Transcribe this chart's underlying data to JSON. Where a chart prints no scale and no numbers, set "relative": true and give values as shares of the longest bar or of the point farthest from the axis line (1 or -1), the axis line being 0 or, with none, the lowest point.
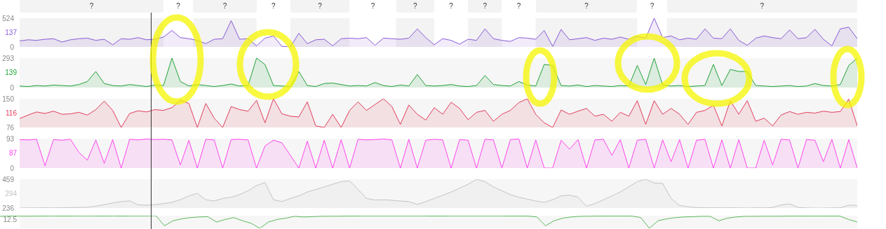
{
  "chart_data": [
    {
      "type": "area",
      "categories": [
        null,
        null,
        null,
        null,
        null,
        null,
        null,
        null,
        null,
        null,
        null,
        null,
        null,
        null,
        null,
        null,
        null,
        null,
        null,
        null,
        null,
        null,
        null,
        null,
        null,
        null,
        null,
        null,
        null,
        null,
        null,
        null,
        null,
        null,
        null,
        null,
        null,
        null,
        null,
        null,
        null,
        null,
        null,
        null,
        null,
        null,
        null,
        null,
        null,
        null,
        null,
        null,
        null,
        null,
        null,
        null,
        null,
        null,
        null,
        null,
        null,
        null,
        null,
        null,
        null,
        null,
        null,
        null,
        null,
        null,
        null,
        null,
        null,
        null,
        null,
        null,
        null,
        null,
        null,
        null,
        null,
        null,
        null,
        null,
        null,
        null,
        null,
        null,
        null,
        null,
        null,
        null,
        null,
        null,
        null,
        null,
        null,
        null,
        null,
        null
      ],
      "ylim": [
        0,
        524
      ],
      "yticks": [
        0,
        524
      ],
      "tick_labels": "y",
      "annotations": [
        "137",
        "?",
        "?",
        "?",
        "?",
        "?",
        "?",
        "?",
        "?",
        "?",
        "?",
        "?",
        "?",
        "?"
      ],
      "series": [
        {
          "color": "#8a5bd6",
          "values": [
            110,
            130,
            120,
            140,
            150,
            90,
            130,
            150,
            160,
            120,
            140,
            40,
            150,
            140,
            170,
            130,
            140,
            180,
            300,
            170,
            150,
            120,
            60,
            140,
            150,
            480,
            140,
            150,
            20,
            160,
            200,
            10,
            0,
            250,
            60,
            130,
            140,
            20,
            150,
            160,
            150,
            170,
            30,
            160,
            150,
            140,
            160,
            330,
            170,
            40,
            150,
            120,
            50,
            140,
            120,
            330,
            150,
            120,
            100,
            170,
            160,
            140,
            300,
            10,
            320,
            130,
            150,
            170,
            120,
            160,
            140,
            180,
            140,
            190,
            160,
            524,
            170,
            200,
            130,
            160,
            140,
            330,
            160,
            150,
            330,
            120,
            30,
            160,
            200,
            170,
            150,
            310,
            150,
            170,
            320,
            140,
            20,
            330,
            360,
            150
          ]
        }
      ]
    },
    {
      "type": "area",
      "categories": [
        null,
        null,
        null,
        null,
        null,
        null,
        null,
        null,
        null,
        null,
        null,
        null,
        null,
        null,
        null,
        null,
        null,
        null,
        null,
        null,
        null,
        null,
        null,
        null,
        null,
        null,
        null,
        null,
        null,
        null,
        null,
        null,
        null,
        null,
        null,
        null,
        null,
        null,
        null,
        null,
        null,
        null,
        null,
        null,
        null,
        null,
        null,
        null,
        null,
        null,
        null,
        null,
        null,
        null,
        null,
        null,
        null,
        null,
        null,
        null,
        null,
        null,
        null,
        null,
        null,
        null,
        null,
        null,
        null,
        null,
        null,
        null,
        null,
        null,
        null,
        null,
        null,
        null,
        null,
        null,
        null,
        null,
        null,
        null,
        null,
        null,
        null,
        null,
        null,
        null,
        null,
        null,
        null,
        null,
        null,
        null,
        null,
        null,
        null,
        null
      ],
      "ylim": [
        0,
        293
      ],
      "yticks": [
        0,
        293
      ],
      "tick_labels": "y",
      "annotations": [
        "139"
      ],
      "series": [
        {
          "color": "#22a33a",
          "values": [
            15,
            10,
            20,
            15,
            25,
            20,
            15,
            30,
            60,
            160,
            40,
            20,
            15,
            30,
            20,
            10,
            25,
            20,
            293,
            60,
            15,
            30,
            20,
            10,
            20,
            35,
            15,
            20,
            293,
            230,
            20,
            15,
            10,
            160,
            20,
            10,
            40,
            45,
            30,
            15,
            20,
            15,
            50,
            20,
            10,
            25,
            15,
            130,
            20,
            15,
            20,
            30,
            15,
            10,
            20,
            120,
            30,
            20,
            15,
            60,
            25,
            15,
            230,
            220,
            20,
            15,
            25,
            10,
            20,
            15,
            10,
            20,
            15,
            220,
            30,
            293,
            25,
            15,
            20,
            10,
            15,
            20,
            230,
            20,
            180,
            160,
            160,
            20,
            15,
            10,
            15,
            20,
            10,
            15,
            40,
            20,
            15,
            30,
            220,
            293
          ]
        }
      ]
    },
    {
      "type": "area",
      "categories": [
        null,
        null,
        null,
        null,
        null,
        null,
        null,
        null,
        null,
        null,
        null,
        null,
        null,
        null,
        null,
        null,
        null,
        null,
        null,
        null,
        null,
        null,
        null,
        null,
        null,
        null,
        null,
        null,
        null,
        null,
        null,
        null,
        null,
        null,
        null,
        null,
        null,
        null,
        null,
        null,
        null,
        null,
        null,
        null,
        null,
        null,
        null,
        null,
        null,
        null,
        null,
        null,
        null,
        null,
        null,
        null,
        null,
        null,
        null,
        null,
        null,
        null,
        null,
        null,
        null,
        null,
        null,
        null,
        null,
        null,
        null,
        null,
        null,
        null,
        null,
        null,
        null,
        null,
        null,
        null,
        null,
        null,
        null,
        null,
        null,
        null,
        null,
        null,
        null,
        null,
        null,
        null,
        null,
        null,
        null,
        null,
        null,
        null,
        null,
        null
      ],
      "ylim": [
        76,
        150
      ],
      "yticks": [
        76,
        150
      ],
      "tick_labels": "y",
      "annotations": [
        "116"
      ],
      "series": [
        {
          "color": "#e23e5c",
          "values": [
            99,
            108,
            116,
            112,
            118,
            110,
            111,
            115,
            108,
            122,
            144,
            120,
            76,
            112,
            119,
            116,
            122,
            120,
            127,
            146,
            138,
            76,
            138,
            100,
            76,
            130,
            122,
            118,
            146,
            88,
            150,
            111,
            105,
            103,
            142,
            80,
            76,
            110,
            76,
            120,
            142,
            120,
            135,
            150,
            130,
            84,
            134,
            110,
            95,
            127,
            110,
            141,
            125,
            96,
            115,
            120,
            92,
            110,
            120,
            140,
            150,
            110,
            88,
            76,
            121,
            110,
            118,
            125,
            105,
            110,
            92,
            115,
            105,
            145,
            84,
            145,
            110,
            125,
            110,
            84,
            115,
            120,
            133,
            80,
            145,
            110,
            145,
            92,
            100,
            80,
            108,
            117,
            110,
            115,
            113,
            118,
            115,
            117,
            149,
            80
          ]
        }
      ]
    },
    {
      "type": "area",
      "categories": [
        null,
        null,
        null,
        null,
        null,
        null,
        null,
        null,
        null,
        null,
        null,
        null,
        null,
        null,
        null,
        null,
        null,
        null,
        null,
        null,
        null,
        null,
        null,
        null,
        null,
        null,
        null,
        null,
        null,
        null,
        null,
        null,
        null,
        null,
        null,
        null,
        null,
        null,
        null,
        null,
        null,
        null,
        null,
        null,
        null,
        null,
        null,
        null,
        null,
        null,
        null,
        null,
        null,
        null,
        null,
        null,
        null,
        null,
        null,
        null,
        null,
        null,
        null,
        null,
        null,
        null,
        null,
        null,
        null,
        null,
        null,
        null,
        null,
        null,
        null,
        null,
        null,
        null,
        null,
        null,
        null,
        null,
        null,
        null,
        null,
        null,
        null,
        null,
        null,
        null,
        null,
        null,
        null,
        null,
        null,
        null,
        null,
        null,
        null,
        null
      ],
      "ylim": [
        0,
        93
      ],
      "yticks": [
        0,
        93
      ],
      "tick_labels": "y",
      "annotations": [
        "87"
      ],
      "series": [
        {
          "color": "#ff44ee",
          "values": [
            90,
            89,
            91,
            7,
            90,
            88,
            91,
            50,
            25,
            89,
            15,
            90,
            0,
            91,
            89,
            92,
            90,
            91,
            89,
            10,
            88,
            0,
            91,
            89,
            0,
            90,
            91,
            89,
            0,
            70,
            88,
            80,
            40,
            0,
            85,
            0,
            88,
            0,
            90,
            0,
            91,
            89,
            90,
            92,
            89,
            0,
            91,
            0,
            88,
            91,
            89,
            0,
            90,
            88,
            0,
            91,
            89,
            0,
            90,
            92,
            0,
            89,
            0,
            0,
            88,
            60,
            90,
            0,
            89,
            91,
            40,
            90,
            0,
            88,
            91,
            0,
            89,
            20,
            90,
            0,
            88,
            91,
            0,
            89,
            0,
            90,
            0,
            0,
            88,
            10,
            91,
            89,
            0,
            90,
            88,
            20,
            91,
            0,
            90,
            0
          ]
        }
      ]
    },
    {
      "type": "area",
      "categories": [
        null,
        null,
        null,
        null,
        null,
        null,
        null,
        null,
        null,
        null,
        null,
        null,
        null,
        null,
        null,
        null,
        null,
        null,
        null,
        null,
        null,
        null,
        null,
        null,
        null,
        null,
        null,
        null,
        null,
        null,
        null,
        null,
        null,
        null,
        null,
        null,
        null,
        null,
        null,
        null,
        null,
        null,
        null,
        null,
        null,
        null,
        null,
        null,
        null,
        null,
        null,
        null,
        null,
        null,
        null,
        null,
        null,
        null,
        null,
        null,
        null,
        null,
        null,
        null,
        null,
        null,
        null,
        null,
        null,
        null,
        null,
        null,
        null,
        null,
        null,
        null,
        null,
        null,
        null,
        null,
        null,
        null,
        null,
        null,
        null,
        null,
        null,
        null,
        null,
        null,
        null,
        null,
        null,
        null,
        null,
        null,
        null,
        null,
        null,
        null
      ],
      "ylim": [
        236,
        459
      ],
      "yticks": [
        236,
        459
      ],
      "tick_labels": "y",
      "annotations": [
        "294"
      ],
      "series": [
        {
          "color": "#c4c4c4",
          "values": [
            236,
            237,
            237,
            238,
            237,
            238,
            240,
            240,
            242,
            250,
            262,
            275,
            286,
            292,
            260,
            258,
            262,
            270,
            280,
            300,
            330,
            350,
            300,
            290,
            310,
            320,
            340,
            370,
            410,
            434,
            300,
            286,
            310,
            330,
            360,
            380,
            400,
            420,
            440,
            447,
            380,
            310,
            298,
            300,
            296,
            290,
            286,
            264,
            286,
            310,
            335,
            360,
            390,
            420,
            459,
            440,
            400,
            370,
            340,
            320,
            305,
            290,
            280,
            300,
            330,
            336,
            320,
            250,
            270,
            300,
            330,
            360,
            400,
            440,
            459,
            430,
            427,
            310,
            256,
            245,
            240,
            238,
            238,
            237,
            238,
            237,
            236,
            238,
            237,
            240,
            260,
            268,
            240,
            237,
            236,
            236,
            237,
            238,
            258,
            256
          ]
        }
      ]
    },
    {
      "type": "line",
      "relative": true,
      "categories": [
        null,
        null,
        null,
        null,
        null,
        null,
        null,
        null,
        null,
        null,
        null,
        null,
        null,
        null,
        null,
        null,
        null,
        null,
        null,
        null,
        null,
        null,
        null,
        null,
        null,
        null,
        null,
        null,
        null,
        null,
        null,
        null,
        null,
        null,
        null,
        null,
        null,
        null,
        null,
        null,
        null,
        null,
        null,
        null,
        null,
        null,
        null,
        null,
        null,
        null,
        null,
        null,
        null,
        null,
        null,
        null,
        null,
        null,
        null,
        null,
        null,
        null,
        null,
        null,
        null,
        null,
        null,
        null,
        null,
        null,
        null,
        null,
        null,
        null,
        null,
        null,
        null,
        null,
        null,
        null,
        null,
        null,
        null,
        null,
        null,
        null,
        null,
        null,
        null,
        null,
        null,
        null,
        null,
        null,
        null,
        null,
        null,
        null,
        null,
        null
      ],
      "tick_labels": false,
      "annotations": [
        "12.5"
      ],
      "series": [
        {
          "color": "#5cb85c",
          "values": [
            0.95,
            0.97,
            0.97,
            0.96,
            0.97,
            0.97,
            0.98,
            0.97,
            0.97,
            0.98,
            0.98,
            0.98,
            0.97,
            0.98,
            0.97,
            0.98,
            0.98,
            0.98,
            1,
            0.2,
            0.6,
            0.75,
            0.85,
            0.9,
            0.92,
            0.5,
            0.7,
            0.85,
            0.6,
            0.4,
            0,
            0.5,
            0.7,
            0.8,
            0.95,
            0.9,
            0.92,
            0.95,
            0.96,
            0.96,
            0.97,
            0.97,
            0.98,
            0.98,
            0.98,
            0.98,
            0.98,
            0.98,
            0.98,
            0.98,
            0.97,
            0.97,
            0.98,
            0.98,
            0.98,
            0.98,
            0.98,
            0.98,
            0.98,
            0.97,
            0.97,
            0.97,
            0.9,
            0.2,
            0.6,
            0.8,
            0.9,
            0.95,
            0.96,
            0.97,
            0.97,
            0.97,
            0.97,
            0.97,
            0.85,
            0,
            0.6,
            0.75,
            0.85,
            0.9,
            0.92,
            0.95,
            0.95,
            0.6,
            0.8,
            0.9,
            0.95,
            0.95,
            0.96,
            0.96,
            0.96,
            0.97,
            0.97,
            0.97,
            0.97,
            0.97,
            0.97,
            0.97,
            0.7,
            0.5
          ]
        }
      ]
    }
  ]
}
